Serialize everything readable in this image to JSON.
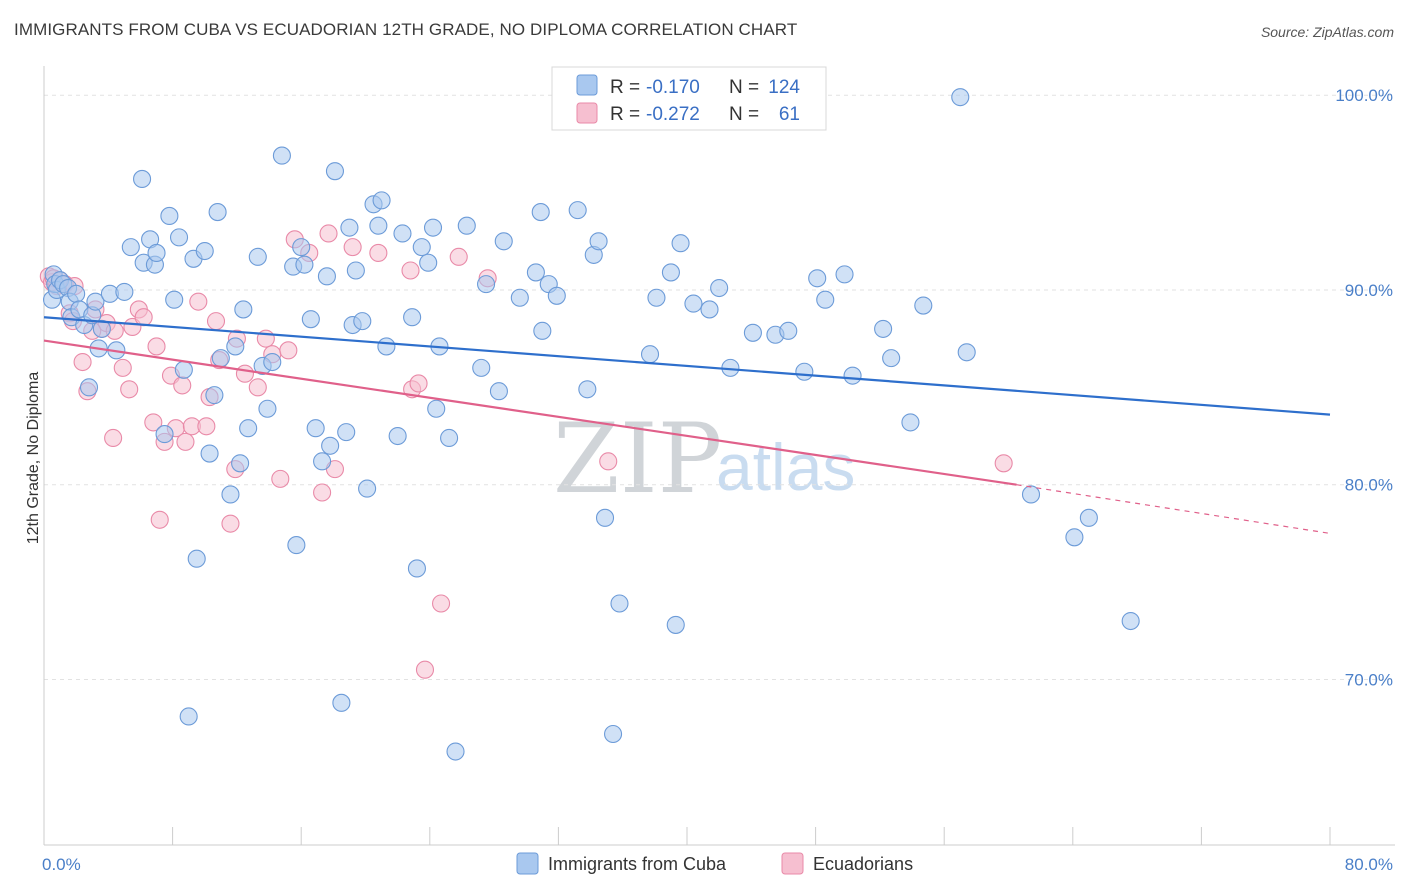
{
  "header": {
    "title": "IMMIGRANTS FROM CUBA VS ECUADORIAN 12TH GRADE, NO DIPLOMA CORRELATION CHART",
    "source": "Source: ZipAtlas.com"
  },
  "legend": {
    "rows": [
      {
        "r_label": "R =",
        "r_value": "-0.170",
        "n_label": "N =",
        "n_value": "124"
      },
      {
        "r_label": "R =",
        "r_value": "-0.272",
        "n_label": "N =",
        "n_value": "61"
      }
    ]
  },
  "bottom_legend": [
    "Immigrants from Cuba",
    "Ecuadorians"
  ],
  "watermark": {
    "zip": "ZIP",
    "atlas": "atlas"
  },
  "colors": {
    "cuba_fill": "#a9c8ef",
    "cuba_stroke": "#6c9bd8",
    "cuba_line": "#2e6fcc",
    "ecu_fill": "#f6bfd0",
    "ecu_stroke": "#e98aa8",
    "ecu_line": "#e0608a",
    "grid": "#e2e2e2",
    "tick_text": "#4a7fc8"
  },
  "chart_data": {
    "type": "scatter",
    "title": "IMMIGRANTS FROM CUBA VS ECUADORIAN 12TH GRADE, NO DIPLOMA CORRELATION CHART",
    "xlabel": "",
    "ylabel": "12th Grade, No Diploma",
    "xlim": [
      0,
      80
    ],
    "ylim": [
      61.5,
      101.5
    ],
    "x_tick_labels": [
      "0.0%",
      "80.0%"
    ],
    "y_ticks": [
      70,
      80,
      90,
      100
    ],
    "y_tick_labels": [
      "70.0%",
      "80.0%",
      "90.0%",
      "100.0%"
    ],
    "grid": true,
    "legend_position": "top-center",
    "series": [
      {
        "name": "Immigrants from Cuba",
        "r": -0.17,
        "n": 124,
        "trend": {
          "x0": 0,
          "y0": 88.6,
          "x1": 80,
          "y1": 83.6
        },
        "points": [
          [
            0.5,
            89.5
          ],
          [
            0.6,
            90.8
          ],
          [
            0.7,
            90.3
          ],
          [
            0.8,
            90.0
          ],
          [
            1.0,
            90.5
          ],
          [
            1.2,
            90.3
          ],
          [
            1.5,
            90.1
          ],
          [
            1.6,
            89.4
          ],
          [
            1.7,
            88.6
          ],
          [
            2.0,
            89.8
          ],
          [
            2.2,
            89.0
          ],
          [
            2.5,
            88.2
          ],
          [
            2.8,
            85.0
          ],
          [
            3.0,
            88.7
          ],
          [
            3.2,
            89.4
          ],
          [
            3.4,
            87.0
          ],
          [
            3.6,
            88.0
          ],
          [
            4.1,
            89.8
          ],
          [
            4.5,
            86.9
          ],
          [
            5.0,
            89.9
          ],
          [
            5.4,
            92.2
          ],
          [
            6.1,
            95.7
          ],
          [
            6.2,
            91.4
          ],
          [
            6.6,
            92.6
          ],
          [
            6.9,
            91.3
          ],
          [
            7.0,
            91.9
          ],
          [
            7.5,
            82.6
          ],
          [
            7.8,
            93.8
          ],
          [
            8.1,
            89.5
          ],
          [
            8.4,
            92.7
          ],
          [
            8.7,
            85.9
          ],
          [
            9.0,
            68.1
          ],
          [
            9.3,
            91.6
          ],
          [
            9.5,
            76.2
          ],
          [
            10.0,
            92.0
          ],
          [
            10.3,
            81.6
          ],
          [
            10.6,
            84.6
          ],
          [
            10.8,
            94.0
          ],
          [
            11.0,
            86.5
          ],
          [
            11.6,
            79.5
          ],
          [
            11.9,
            87.1
          ],
          [
            12.2,
            81.1
          ],
          [
            12.4,
            89.0
          ],
          [
            12.7,
            82.9
          ],
          [
            13.3,
            91.7
          ],
          [
            13.6,
            86.1
          ],
          [
            13.9,
            83.9
          ],
          [
            14.2,
            86.3
          ],
          [
            14.8,
            96.9
          ],
          [
            15.5,
            91.2
          ],
          [
            15.7,
            76.9
          ],
          [
            16.0,
            92.2
          ],
          [
            16.2,
            91.3
          ],
          [
            16.6,
            88.5
          ],
          [
            16.9,
            82.9
          ],
          [
            17.3,
            81.2
          ],
          [
            17.6,
            90.7
          ],
          [
            17.8,
            82.0
          ],
          [
            18.1,
            96.1
          ],
          [
            18.5,
            68.8
          ],
          [
            18.8,
            82.7
          ],
          [
            19.0,
            93.2
          ],
          [
            19.2,
            88.2
          ],
          [
            19.4,
            91.0
          ],
          [
            19.8,
            88.4
          ],
          [
            20.1,
            79.8
          ],
          [
            20.5,
            94.4
          ],
          [
            20.8,
            93.3
          ],
          [
            21.0,
            94.6
          ],
          [
            21.3,
            87.1
          ],
          [
            22.0,
            82.5
          ],
          [
            22.3,
            92.9
          ],
          [
            22.9,
            88.6
          ],
          [
            23.2,
            75.7
          ],
          [
            23.5,
            92.2
          ],
          [
            23.9,
            91.4
          ],
          [
            24.2,
            93.2
          ],
          [
            24.4,
            83.9
          ],
          [
            24.6,
            87.1
          ],
          [
            25.2,
            82.4
          ],
          [
            25.6,
            66.3
          ],
          [
            26.3,
            93.3
          ],
          [
            27.2,
            86.0
          ],
          [
            27.5,
            90.3
          ],
          [
            28.3,
            84.8
          ],
          [
            28.6,
            92.5
          ],
          [
            29.6,
            89.6
          ],
          [
            30.6,
            90.9
          ],
          [
            30.9,
            94.0
          ],
          [
            31.0,
            87.9
          ],
          [
            31.4,
            90.3
          ],
          [
            31.9,
            89.7
          ],
          [
            33.2,
            94.1
          ],
          [
            33.8,
            84.9
          ],
          [
            34.2,
            91.8
          ],
          [
            34.5,
            92.5
          ],
          [
            34.9,
            78.3
          ],
          [
            35.4,
            67.2
          ],
          [
            35.8,
            73.9
          ],
          [
            37.7,
            86.7
          ],
          [
            38.1,
            89.6
          ],
          [
            39.0,
            90.9
          ],
          [
            39.3,
            72.8
          ],
          [
            39.6,
            92.4
          ],
          [
            40.4,
            89.3
          ],
          [
            41.4,
            89.0
          ],
          [
            42.0,
            90.1
          ],
          [
            42.7,
            86.0
          ],
          [
            44.1,
            87.8
          ],
          [
            45.5,
            87.7
          ],
          [
            46.3,
            87.9
          ],
          [
            47.3,
            85.8
          ],
          [
            48.1,
            90.6
          ],
          [
            48.6,
            89.5
          ],
          [
            49.8,
            90.8
          ],
          [
            50.3,
            85.6
          ],
          [
            52.2,
            88.0
          ],
          [
            52.7,
            86.5
          ],
          [
            53.9,
            83.2
          ],
          [
            54.7,
            89.2
          ],
          [
            57.0,
            99.9
          ],
          [
            57.4,
            86.8
          ],
          [
            61.4,
            79.5
          ],
          [
            64.1,
            77.3
          ],
          [
            65.0,
            78.3
          ],
          [
            67.6,
            73.0
          ]
        ]
      },
      {
        "name": "Ecuadorians",
        "r": -0.272,
        "n": 61,
        "trend": {
          "x0": 0,
          "y0": 87.4,
          "x1": 60.5,
          "y1": 80.0
        },
        "trend_dashed": {
          "x0": 60.5,
          "y0": 80.0,
          "x1": 80,
          "y1": 77.5
        },
        "points": [
          [
            0.3,
            90.7
          ],
          [
            0.5,
            90.4
          ],
          [
            0.6,
            90.6
          ],
          [
            0.8,
            90.2
          ],
          [
            1.0,
            90.5
          ],
          [
            1.3,
            90.3
          ],
          [
            1.6,
            88.8
          ],
          [
            1.8,
            88.4
          ],
          [
            2.4,
            86.3
          ],
          [
            2.7,
            84.8
          ],
          [
            3.2,
            89.0
          ],
          [
            3.6,
            88.0
          ],
          [
            3.9,
            88.3
          ],
          [
            4.3,
            82.4
          ],
          [
            4.4,
            87.9
          ],
          [
            4.9,
            86.0
          ],
          [
            5.3,
            84.9
          ],
          [
            5.5,
            88.1
          ],
          [
            5.9,
            89.0
          ],
          [
            6.2,
            88.6
          ],
          [
            6.8,
            83.2
          ],
          [
            7.0,
            87.1
          ],
          [
            7.2,
            78.2
          ],
          [
            7.5,
            82.2
          ],
          [
            7.9,
            85.6
          ],
          [
            8.2,
            82.9
          ],
          [
            8.6,
            85.1
          ],
          [
            8.8,
            82.2
          ],
          [
            9.2,
            83.0
          ],
          [
            9.6,
            89.4
          ],
          [
            10.1,
            83.0
          ],
          [
            10.3,
            84.5
          ],
          [
            10.7,
            88.4
          ],
          [
            10.9,
            86.4
          ],
          [
            11.6,
            78.0
          ],
          [
            11.9,
            80.8
          ],
          [
            12.5,
            85.7
          ],
          [
            13.3,
            85.0
          ],
          [
            13.8,
            87.5
          ],
          [
            14.2,
            86.7
          ],
          [
            14.7,
            80.3
          ],
          [
            15.2,
            86.9
          ],
          [
            15.6,
            92.6
          ],
          [
            17.3,
            79.6
          ],
          [
            17.7,
            92.9
          ],
          [
            18.1,
            80.8
          ],
          [
            19.2,
            92.2
          ],
          [
            20.8,
            91.9
          ],
          [
            22.8,
            91.0
          ],
          [
            22.9,
            84.9
          ],
          [
            23.3,
            85.2
          ],
          [
            23.7,
            70.5
          ],
          [
            24.7,
            73.9
          ],
          [
            25.8,
            91.7
          ],
          [
            27.6,
            90.6
          ],
          [
            35.1,
            81.2
          ],
          [
            59.7,
            81.1
          ],
          [
            1.9,
            90.2
          ],
          [
            3.0,
            87.9
          ],
          [
            12.0,
            87.5
          ],
          [
            16.5,
            91.9
          ]
        ]
      }
    ]
  }
}
